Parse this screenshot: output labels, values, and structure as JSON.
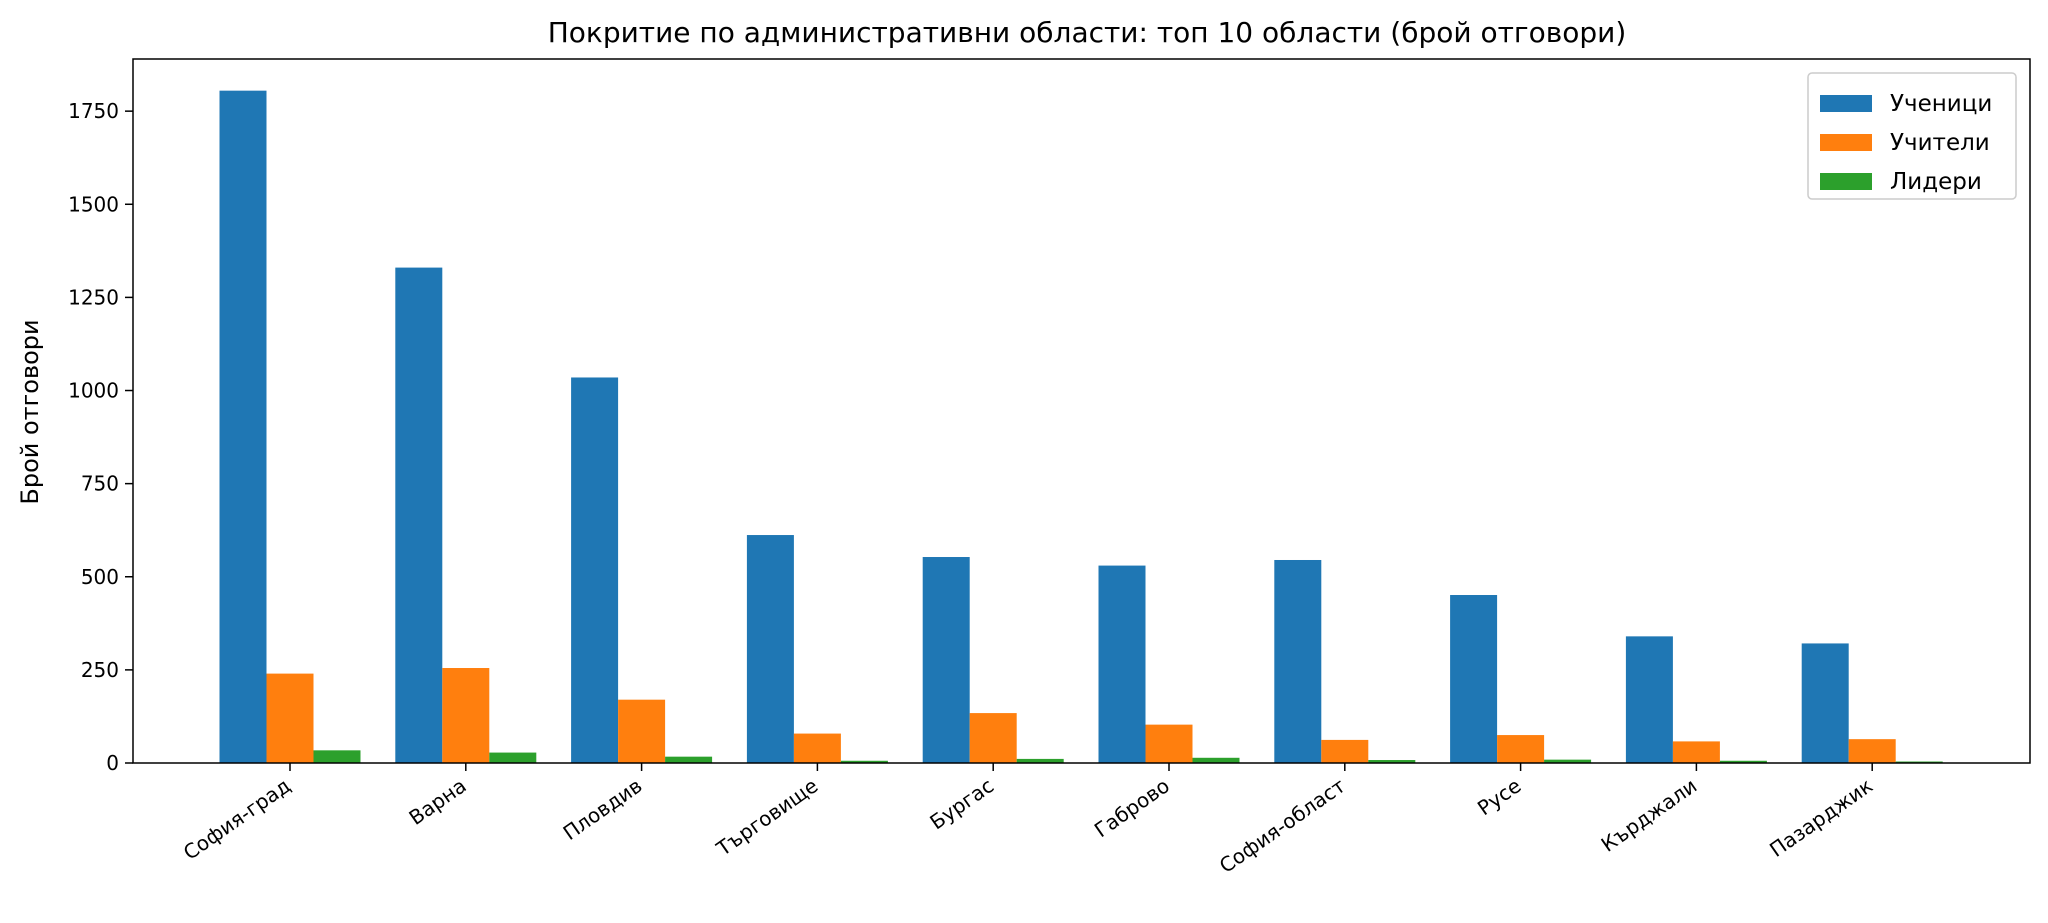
{
  "chart_data": {
    "type": "bar",
    "title": "Покритие по административни области: топ 10 области (брой отговори)",
    "xlabel": "",
    "ylabel": "Брой отговори",
    "ylim": [
      0,
      1890
    ],
    "yticks": [
      "0",
      "250",
      "500",
      "750",
      "1000",
      "1250",
      "1500",
      "1750"
    ],
    "grid": false,
    "legend_position": "top-right",
    "categories": [
      "София-град",
      "Варна",
      "Пловдив",
      "Търговище",
      "Бургас",
      "Габрово",
      "София-област",
      "Русе",
      "Кърджали",
      "Пазарджик"
    ],
    "series": [
      {
        "name": "Ученици",
        "color": "#1f77b4",
        "values": [
          1805,
          1330,
          1035,
          612,
          553,
          530,
          545,
          451,
          340,
          321
        ]
      },
      {
        "name": "Учители",
        "color": "#ff7f0e",
        "values": [
          240,
          255,
          170,
          79,
          134,
          103,
          62,
          75,
          58,
          64
        ]
      },
      {
        "name": "Лидери",
        "color": "#2ca02c",
        "values": [
          34,
          28,
          17,
          6,
          11,
          14,
          8,
          9,
          6,
          4
        ]
      }
    ]
  }
}
